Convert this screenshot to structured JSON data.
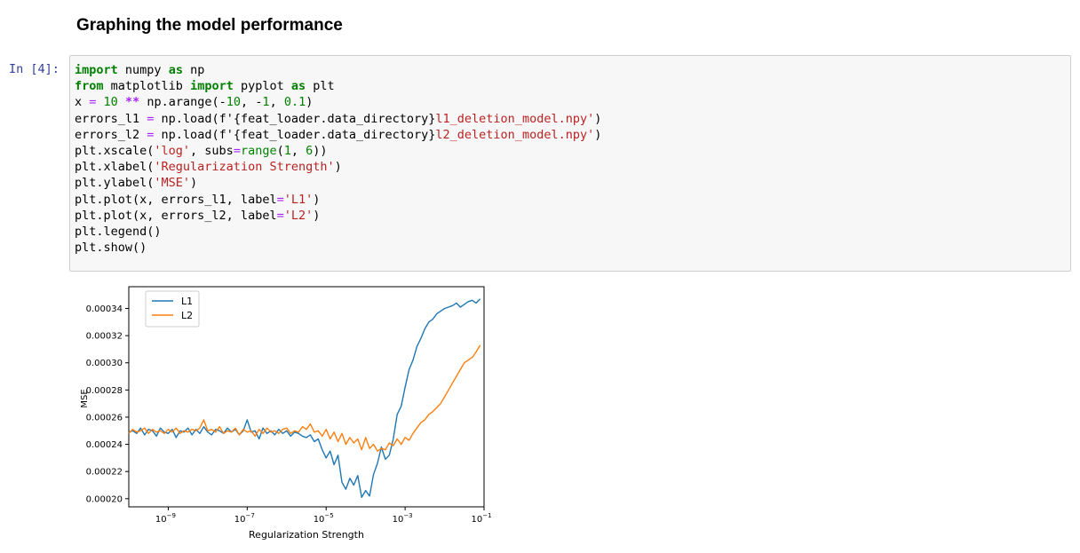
{
  "cell": {
    "heading": "Graphing the model performance",
    "prompt": "In [4]:",
    "code_lines": [
      [
        {
          "t": "import",
          "c": "kw"
        },
        {
          "t": " numpy "
        },
        {
          "t": "as",
          "c": "kw"
        },
        {
          "t": " np"
        }
      ],
      [
        {
          "t": "from",
          "c": "kw"
        },
        {
          "t": " matplotlib "
        },
        {
          "t": "import",
          "c": "kw"
        },
        {
          "t": " pyplot "
        },
        {
          "t": "as",
          "c": "kw"
        },
        {
          "t": " plt"
        }
      ],
      [
        {
          "t": "x "
        },
        {
          "t": "=",
          "c": "eq"
        },
        {
          "t": " "
        },
        {
          "t": "10",
          "c": "num"
        },
        {
          "t": " "
        },
        {
          "t": "**",
          "c": "op"
        },
        {
          "t": " np.arange(-"
        },
        {
          "t": "10",
          "c": "num"
        },
        {
          "t": ", -"
        },
        {
          "t": "1",
          "c": "num"
        },
        {
          "t": ", "
        },
        {
          "t": "0.1",
          "c": "num"
        },
        {
          "t": ")"
        }
      ],
      [
        {
          "t": "errors_l1 "
        },
        {
          "t": "=",
          "c": "eq"
        },
        {
          "t": " np.load(f'{feat_loader.data_directory}"
        },
        {
          "t": "l1_deletion_model.npy'",
          "c": "str"
        },
        {
          "t": ")"
        }
      ],
      [
        {
          "t": "errors_l2 "
        },
        {
          "t": "=",
          "c": "eq"
        },
        {
          "t": " np.load(f'{feat_loader.data_directory}"
        },
        {
          "t": "l2_deletion_model.npy'",
          "c": "str"
        },
        {
          "t": ")"
        }
      ],
      [
        {
          "t": "plt.xscale("
        },
        {
          "t": "'log'",
          "c": "str"
        },
        {
          "t": ", subs"
        },
        {
          "t": "=",
          "c": "eq"
        },
        {
          "t": "range",
          "c": "num"
        },
        {
          "t": "("
        },
        {
          "t": "1",
          "c": "num"
        },
        {
          "t": ", "
        },
        {
          "t": "6",
          "c": "num"
        },
        {
          "t": "))"
        }
      ],
      [
        {
          "t": "plt.xlabel("
        },
        {
          "t": "'Regularization Strength'",
          "c": "str"
        },
        {
          "t": ")"
        }
      ],
      [
        {
          "t": "plt.ylabel("
        },
        {
          "t": "'MSE'",
          "c": "str"
        },
        {
          "t": ")"
        }
      ],
      [
        {
          "t": "plt.plot(x, errors_l1, label"
        },
        {
          "t": "=",
          "c": "eq"
        },
        {
          "t": "'L1'",
          "c": "str"
        },
        {
          "t": ")"
        }
      ],
      [
        {
          "t": "plt.plot(x, errors_l2, label"
        },
        {
          "t": "=",
          "c": "eq"
        },
        {
          "t": "'L2'",
          "c": "str"
        },
        {
          "t": ")"
        }
      ],
      [
        {
          "t": "plt.legend()"
        }
      ],
      [
        {
          "t": "plt.show()"
        }
      ]
    ]
  },
  "chart_data": {
    "type": "line",
    "title": "",
    "xlabel": "Regularization Strength",
    "ylabel": "MSE",
    "xscale": "log",
    "xlim": [
      1e-10,
      0.1
    ],
    "ylim": [
      0.000194,
      0.000356
    ],
    "xticks": [
      {
        "label_base": "10",
        "label_exp": "−9",
        "value": 1e-09
      },
      {
        "label_base": "10",
        "label_exp": "−7",
        "value": 1e-07
      },
      {
        "label_base": "10",
        "label_exp": "−5",
        "value": 1e-05
      },
      {
        "label_base": "10",
        "label_exp": "−3",
        "value": 0.001
      },
      {
        "label_base": "10",
        "label_exp": "−1",
        "value": 0.1
      }
    ],
    "yticks": [
      {
        "label": "0.00020",
        "value": 0.0002
      },
      {
        "label": "0.00022",
        "value": 0.00022
      },
      {
        "label": "0.00024",
        "value": 0.00024
      },
      {
        "label": "0.00026",
        "value": 0.00026
      },
      {
        "label": "0.00028",
        "value": 0.00028
      },
      {
        "label": "0.00030",
        "value": 0.0003
      },
      {
        "label": "0.00032",
        "value": 0.00032
      },
      {
        "label": "0.00034",
        "value": 0.00034
      }
    ],
    "legend": {
      "position": "top-left"
    },
    "series": [
      {
        "name": "L1",
        "color": "#1f77b4",
        "x_exponents": [
          -10.0,
          -9.9,
          -9.8,
          -9.7,
          -9.6,
          -9.5,
          -9.4,
          -9.3,
          -9.2,
          -9.1,
          -9.0,
          -8.9,
          -8.8,
          -8.7,
          -8.6,
          -8.5,
          -8.4,
          -8.3,
          -8.2,
          -8.1,
          -8.0,
          -7.9,
          -7.8,
          -7.7,
          -7.6,
          -7.5,
          -7.4,
          -7.3,
          -7.2,
          -7.1,
          -7.0,
          -6.9,
          -6.8,
          -6.7,
          -6.6,
          -6.5,
          -6.4,
          -6.3,
          -6.2,
          -6.1,
          -6.0,
          -5.9,
          -5.8,
          -5.7,
          -5.6,
          -5.5,
          -5.4,
          -5.3,
          -5.2,
          -5.1,
          -5.0,
          -4.9,
          -4.8,
          -4.7,
          -4.6,
          -4.5,
          -4.4,
          -4.3,
          -4.2,
          -4.1,
          -4.0,
          -3.9,
          -3.8,
          -3.7,
          -3.6,
          -3.5,
          -3.4,
          -3.3,
          -3.2,
          -3.1,
          -3.0,
          -2.9,
          -2.8,
          -2.7,
          -2.6,
          -2.5,
          -2.4,
          -2.3,
          -2.2,
          -2.1,
          -2.0,
          -1.9,
          -1.8,
          -1.7,
          -1.6,
          -1.5,
          -1.4,
          -1.3,
          -1.2,
          -1.1
        ],
        "y": [
          0.000249,
          0.00025,
          0.000248,
          0.000252,
          0.000247,
          0.000251,
          0.00025,
          0.000246,
          0.000252,
          0.000249,
          0.000248,
          0.000251,
          0.000245,
          0.00025,
          0.000249,
          0.000252,
          0.000247,
          0.000251,
          0.000248,
          0.000253,
          0.000249,
          0.000247,
          0.000251,
          0.00025,
          0.000248,
          0.000252,
          0.000249,
          0.000251,
          0.000247,
          0.00025,
          0.000258,
          0.000249,
          0.00025,
          0.000244,
          0.000252,
          0.000248,
          0.00025,
          0.000247,
          0.000251,
          0.000248,
          0.00025,
          0.000246,
          0.000249,
          0.000248,
          0.000246,
          0.000245,
          0.000247,
          0.000242,
          0.000244,
          0.000236,
          0.00023,
          0.000235,
          0.000225,
          0.000232,
          0.000212,
          0.000207,
          0.000215,
          0.00021,
          0.000217,
          0.000201,
          0.000206,
          0.000202,
          0.000218,
          0.000226,
          0.000238,
          0.000229,
          0.000232,
          0.000244,
          0.000262,
          0.000268,
          0.000282,
          0.000295,
          0.000302,
          0.000312,
          0.000318,
          0.000325,
          0.00033,
          0.000332,
          0.000336,
          0.000338,
          0.00034,
          0.000341,
          0.000342,
          0.000344,
          0.000341,
          0.000343,
          0.000345,
          0.000346,
          0.000344,
          0.000347
        ]
      },
      {
        "name": "L2",
        "color": "#ff7f0e",
        "x_exponents": [
          -10.0,
          -9.9,
          -9.8,
          -9.7,
          -9.6,
          -9.5,
          -9.4,
          -9.3,
          -9.2,
          -9.1,
          -9.0,
          -8.9,
          -8.8,
          -8.7,
          -8.6,
          -8.5,
          -8.4,
          -8.3,
          -8.2,
          -8.1,
          -8.0,
          -7.9,
          -7.8,
          -7.7,
          -7.6,
          -7.5,
          -7.4,
          -7.3,
          -7.2,
          -7.1,
          -7.0,
          -6.9,
          -6.8,
          -6.7,
          -6.6,
          -6.5,
          -6.4,
          -6.3,
          -6.2,
          -6.1,
          -6.0,
          -5.9,
          -5.8,
          -5.7,
          -5.6,
          -5.5,
          -5.4,
          -5.3,
          -5.2,
          -5.1,
          -5.0,
          -4.9,
          -4.8,
          -4.7,
          -4.6,
          -4.5,
          -4.4,
          -4.3,
          -4.2,
          -4.1,
          -4.0,
          -3.9,
          -3.8,
          -3.7,
          -3.6,
          -3.5,
          -3.4,
          -3.3,
          -3.2,
          -3.1,
          -3.0,
          -2.9,
          -2.8,
          -2.7,
          -2.6,
          -2.5,
          -2.4,
          -2.3,
          -2.2,
          -2.1,
          -2.0,
          -1.9,
          -1.8,
          -1.7,
          -1.6,
          -1.5,
          -1.4,
          -1.3,
          -1.2,
          -1.1
        ],
        "y": [
          0.000248,
          0.000251,
          0.000249,
          0.00025,
          0.000252,
          0.000248,
          0.000251,
          0.000249,
          0.00025,
          0.000248,
          0.000251,
          0.000249,
          0.000252,
          0.000248,
          0.00025,
          0.000249,
          0.000251,
          0.00025,
          0.000252,
          0.000258,
          0.00025,
          0.000251,
          0.000249,
          0.000253,
          0.000248,
          0.00025,
          0.000249,
          0.000252,
          0.000247,
          0.000251,
          0.000249,
          0.00025,
          0.000246,
          0.000251,
          0.000248,
          0.000252,
          0.000249,
          0.00025,
          0.000248,
          0.000251,
          0.000252,
          0.000248,
          0.00025,
          0.000249,
          0.000253,
          0.000251,
          0.000255,
          0.000249,
          0.00025,
          0.000246,
          0.000251,
          0.000244,
          0.000249,
          0.000242,
          0.000248,
          0.00024,
          0.000245,
          0.000241,
          0.000244,
          0.000236,
          0.000245,
          0.000237,
          0.00024,
          0.000235,
          0.000237,
          0.000236,
          0.000241,
          0.000239,
          0.000244,
          0.00024,
          0.000245,
          0.000243,
          0.000248,
          0.000252,
          0.000256,
          0.000258,
          0.000262,
          0.000264,
          0.000267,
          0.00027,
          0.000275,
          0.00028,
          0.000285,
          0.00029,
          0.000295,
          0.0003,
          0.000302,
          0.000304,
          0.000308,
          0.000313
        ]
      }
    ]
  }
}
